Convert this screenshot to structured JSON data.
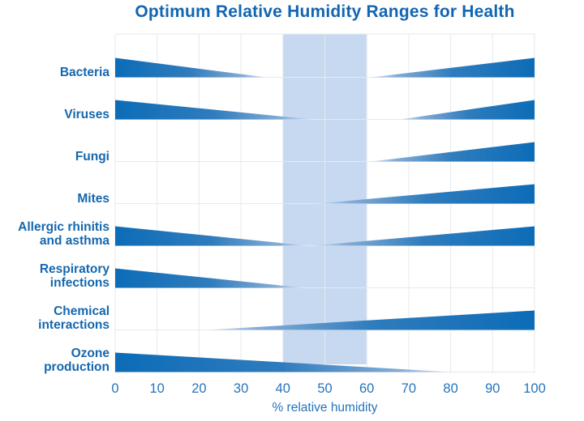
{
  "colors": {
    "title_text": "#1166b2",
    "label_text": "#1467ae",
    "tick_text": "#2673bb",
    "wedge_solid": "#0c6cb7",
    "wedge_mid": "#2f7cbd",
    "wedge_light": "#86add6",
    "wedge_tip": "#bcd2ea",
    "band_fill": "#c6d9f0",
    "grid_line": "#e6e9ee"
  },
  "chart_data": {
    "type": "area",
    "title": "Optimum Relative Humidity Ranges for Health",
    "xlabel": "% relative humidity",
    "xlim": [
      0,
      100
    ],
    "x_ticks": [
      0,
      10,
      20,
      30,
      40,
      50,
      60,
      70,
      80,
      90,
      100
    ],
    "grid": true,
    "legend_position": "none",
    "optimum_band": {
      "from": 40,
      "to": 60
    },
    "rows": [
      {
        "label": "Bacteria",
        "lines": [
          "Bacteria"
        ],
        "wedges": [
          {
            "from": 0,
            "to": 36,
            "direction": "decreasing"
          },
          {
            "from": 61,
            "to": 100,
            "direction": "increasing"
          }
        ]
      },
      {
        "label": "Viruses",
        "lines": [
          "Viruses"
        ],
        "wedges": [
          {
            "from": 0,
            "to": 47,
            "direction": "decreasing"
          },
          {
            "from": 68,
            "to": 100,
            "direction": "increasing"
          }
        ]
      },
      {
        "label": "Fungi",
        "lines": [
          "Fungi"
        ],
        "wedges": [
          {
            "from": 61,
            "to": 100,
            "direction": "increasing"
          }
        ]
      },
      {
        "label": "Mites",
        "lines": [
          "Mites"
        ],
        "wedges": [
          {
            "from": 48,
            "to": 100,
            "direction": "increasing"
          }
        ]
      },
      {
        "label": "Allergic rhinitis and asthma",
        "lines": [
          "Allergic rhinitis",
          "and asthma"
        ],
        "wedges": [
          {
            "from": 0,
            "to": 46,
            "direction": "decreasing"
          },
          {
            "from": 47,
            "to": 100,
            "direction": "increasing"
          }
        ]
      },
      {
        "label": "Respiratory infections",
        "lines": [
          "Respiratory",
          "infections"
        ],
        "wedges": [
          {
            "from": 0,
            "to": 45,
            "direction": "decreasing"
          }
        ]
      },
      {
        "label": "Chemical interactions",
        "lines": [
          "Chemical",
          "interactions"
        ],
        "wedges": [
          {
            "from": 22,
            "to": 100,
            "direction": "increasing"
          }
        ]
      },
      {
        "label": "Ozone production",
        "lines": [
          "Ozone",
          "production"
        ],
        "wedges": [
          {
            "from": 0,
            "to": 80,
            "direction": "decreasing"
          }
        ]
      }
    ]
  }
}
